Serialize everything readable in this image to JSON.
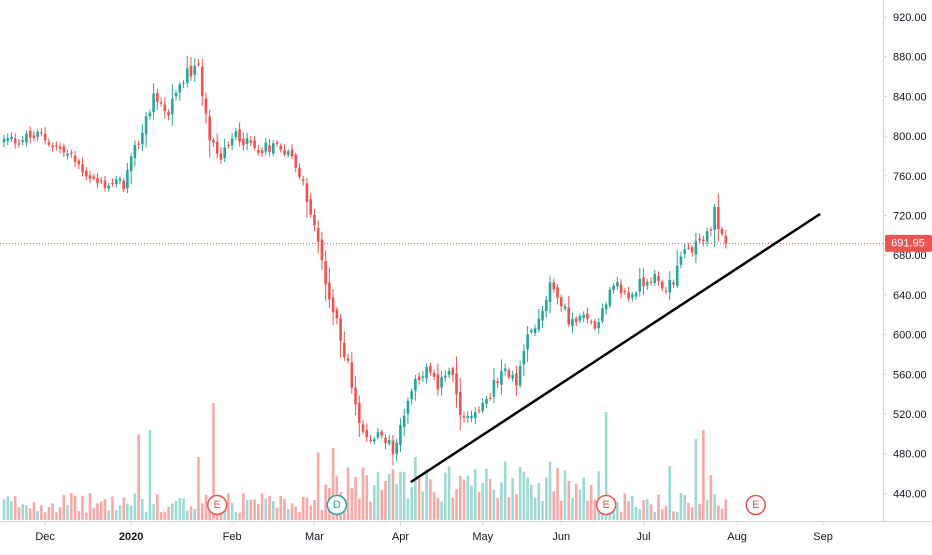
{
  "chart_data": {
    "type": "candlestick",
    "colors": {
      "up": "#26a69a",
      "down": "#ef5350",
      "up_volume": "#9fd9d3",
      "down_volume": "#f7a9a7",
      "trendline": "#000000",
      "price_line": "#ef5350"
    },
    "y_axis": {
      "ticks": [
        "920.00",
        "880.00",
        "840.00",
        "800.00",
        "760.00",
        "720.00",
        "680.00",
        "640.00",
        "600.00",
        "560.00",
        "520.00",
        "480.00",
        "440.00"
      ],
      "range": [
        415,
        935
      ]
    },
    "x_axis": {
      "ticks": [
        {
          "label": "Dec",
          "bold": false
        },
        {
          "label": "2020",
          "bold": true
        },
        {
          "label": "Feb",
          "bold": false
        },
        {
          "label": "Mar",
          "bold": false
        },
        {
          "label": "Apr",
          "bold": false
        },
        {
          "label": "May",
          "bold": false
        },
        {
          "label": "Jun",
          "bold": false
        },
        {
          "label": "Jul",
          "bold": false
        },
        {
          "label": "Aug",
          "bold": false
        },
        {
          "label": "Sep",
          "bold": false
        }
      ]
    },
    "last_price": {
      "label": "691.95",
      "value": 691.95,
      "color": "#ef5350"
    },
    "price_anchors": [
      {
        "day": 0,
        "price": 795
      },
      {
        "day": 10,
        "price": 800
      },
      {
        "day": 18,
        "price": 778
      },
      {
        "day": 25,
        "price": 752
      },
      {
        "day": 32,
        "price": 752
      },
      {
        "day": 36,
        "price": 795
      },
      {
        "day": 40,
        "price": 840
      },
      {
        "day": 44,
        "price": 822
      },
      {
        "day": 48,
        "price": 860
      },
      {
        "day": 52,
        "price": 868
      },
      {
        "day": 55,
        "price": 800
      },
      {
        "day": 58,
        "price": 775
      },
      {
        "day": 62,
        "price": 802
      },
      {
        "day": 67,
        "price": 788
      },
      {
        "day": 71,
        "price": 790
      },
      {
        "day": 74,
        "price": 792
      },
      {
        "day": 78,
        "price": 772
      },
      {
        "day": 81,
        "price": 738
      },
      {
        "day": 84,
        "price": 693
      },
      {
        "day": 86,
        "price": 650
      },
      {
        "day": 89,
        "price": 610
      },
      {
        "day": 92,
        "price": 570
      },
      {
        "day": 95,
        "price": 505
      },
      {
        "day": 98,
        "price": 492
      },
      {
        "day": 101,
        "price": 505
      },
      {
        "day": 104,
        "price": 480
      },
      {
        "day": 107,
        "price": 522
      },
      {
        "day": 110,
        "price": 550
      },
      {
        "day": 113,
        "price": 572
      },
      {
        "day": 116,
        "price": 548
      },
      {
        "day": 119,
        "price": 568
      },
      {
        "day": 122,
        "price": 522
      },
      {
        "day": 125,
        "price": 518
      },
      {
        "day": 128,
        "price": 530
      },
      {
        "day": 131,
        "price": 548
      },
      {
        "day": 134,
        "price": 562
      },
      {
        "day": 137,
        "price": 552
      },
      {
        "day": 140,
        "price": 595
      },
      {
        "day": 143,
        "price": 612
      },
      {
        "day": 146,
        "price": 652
      },
      {
        "day": 149,
        "price": 628
      },
      {
        "day": 152,
        "price": 612
      },
      {
        "day": 155,
        "price": 615
      },
      {
        "day": 158,
        "price": 610
      },
      {
        "day": 161,
        "price": 635
      },
      {
        "day": 164,
        "price": 648
      },
      {
        "day": 167,
        "price": 638
      },
      {
        "day": 170,
        "price": 650
      },
      {
        "day": 173,
        "price": 660
      },
      {
        "day": 176,
        "price": 645
      },
      {
        "day": 179,
        "price": 655
      },
      {
        "day": 182,
        "price": 682
      },
      {
        "day": 185,
        "price": 688
      },
      {
        "day": 188,
        "price": 700
      },
      {
        "day": 190,
        "price": 722
      },
      {
        "day": 192,
        "price": 702
      },
      {
        "day": 193,
        "price": 691.95
      }
    ],
    "volume_spikes": [
      {
        "day": 36,
        "value": 9.5
      },
      {
        "day": 39,
        "value": 10
      },
      {
        "day": 56,
        "value": 13
      },
      {
        "day": 52,
        "value": 7
      },
      {
        "day": 88,
        "value": 8
      },
      {
        "day": 84,
        "value": 7.5
      },
      {
        "day": 110,
        "value": 7
      },
      {
        "day": 134,
        "value": 6.5
      },
      {
        "day": 146,
        "value": 6.5
      },
      {
        "day": 161,
        "value": 12
      },
      {
        "day": 187,
        "value": 10
      },
      {
        "day": 185,
        "value": 9
      },
      {
        "day": 178,
        "value": 6
      },
      {
        "day": 189,
        "value": 5
      }
    ],
    "trendline": {
      "from": {
        "day": 109,
        "price": 452
      },
      "to": {
        "day": 218,
        "price": 721
      }
    },
    "events": [
      {
        "label": "E",
        "day": 57,
        "type": "earnings",
        "color": "#ef5350"
      },
      {
        "label": "D",
        "day": 89,
        "type": "dividend",
        "color": "#26a69a"
      },
      {
        "label": "E",
        "day": 161,
        "type": "earnings",
        "color": "#ef5350"
      },
      {
        "label": "E",
        "day": 201,
        "type": "earnings",
        "color": "#ef5350"
      }
    ],
    "day_count": 194,
    "x_tick_days": [
      11,
      34,
      61,
      83,
      106,
      128,
      149,
      171,
      196,
      219
    ]
  }
}
